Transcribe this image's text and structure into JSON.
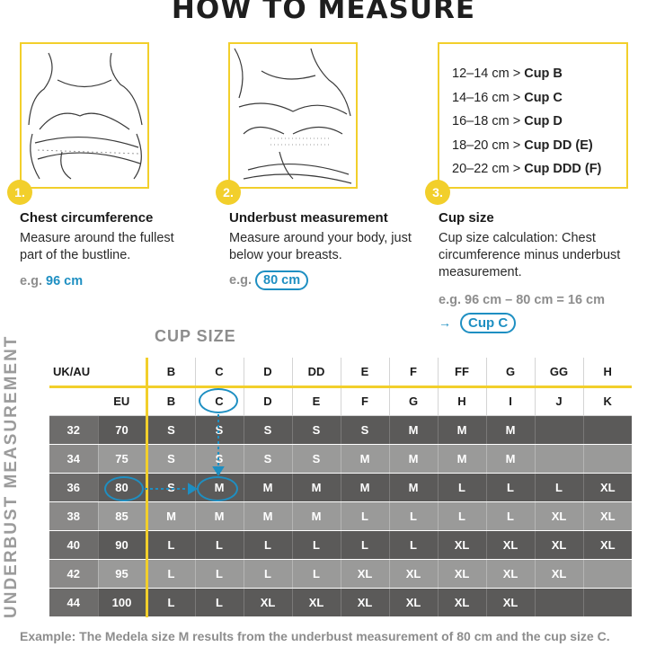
{
  "title": "HOW TO MEASURE",
  "steps": [
    {
      "num": "1.",
      "title": "Chest circumference",
      "desc": "Measure around the fullest part of the bustline.",
      "example_prefix": "e.g.",
      "example_value": "96 cm"
    },
    {
      "num": "2.",
      "title": "Underbust measurement",
      "desc": "Measure around your body, just below your breasts.",
      "example_prefix": "e.g.",
      "example_value": "80 cm"
    },
    {
      "num": "3.",
      "title": "Cup size",
      "desc": "Cup size calculation: Chest circumference minus underbust measurement.",
      "example_calc": "e.g. 96 cm – 80 cm = 16 cm",
      "example_result": "Cup C"
    }
  ],
  "cup_ranges": [
    {
      "range": "12–14 cm >",
      "cup": "Cup B"
    },
    {
      "range": "14–16 cm >",
      "cup": "Cup C"
    },
    {
      "range": "16–18 cm >",
      "cup": "Cup D"
    },
    {
      "range": "18–20 cm >",
      "cup": "Cup DD (E)"
    },
    {
      "range": "20–22 cm >",
      "cup": "Cup DDD (F)"
    }
  ],
  "table": {
    "cup_size_label": "CUP SIZE",
    "underbust_label": "UNDERBUST MEASUREMENT",
    "uk_header": "UK/AU",
    "eu_header": "EU",
    "uk_cups": [
      "B",
      "C",
      "D",
      "DD",
      "E",
      "F",
      "FF",
      "G",
      "GG",
      "H"
    ],
    "eu_cups": [
      "B",
      "C",
      "D",
      "E",
      "F",
      "G",
      "H",
      "I",
      "J",
      "K"
    ],
    "rows": [
      {
        "uk": "32",
        "eu": "70",
        "sizes": [
          "S",
          "S",
          "S",
          "S",
          "S",
          "M",
          "M",
          "M",
          "",
          ""
        ]
      },
      {
        "uk": "34",
        "eu": "75",
        "sizes": [
          "S",
          "S",
          "S",
          "S",
          "M",
          "M",
          "M",
          "M",
          "",
          ""
        ]
      },
      {
        "uk": "36",
        "eu": "80",
        "sizes": [
          "S",
          "M",
          "M",
          "M",
          "M",
          "M",
          "L",
          "L",
          "L",
          "XL"
        ]
      },
      {
        "uk": "38",
        "eu": "85",
        "sizes": [
          "M",
          "M",
          "M",
          "M",
          "L",
          "L",
          "L",
          "L",
          "XL",
          "XL"
        ]
      },
      {
        "uk": "40",
        "eu": "90",
        "sizes": [
          "L",
          "L",
          "L",
          "L",
          "L",
          "L",
          "XL",
          "XL",
          "XL",
          "XL"
        ]
      },
      {
        "uk": "42",
        "eu": "95",
        "sizes": [
          "L",
          "L",
          "L",
          "L",
          "XL",
          "XL",
          "XL",
          "XL",
          "XL",
          ""
        ]
      },
      {
        "uk": "44",
        "eu": "100",
        "sizes": [
          "L",
          "L",
          "XL",
          "XL",
          "XL",
          "XL",
          "XL",
          "XL",
          "",
          ""
        ]
      }
    ]
  },
  "footnote": "Example: The Medela size M results from the underbust measurement of 80 cm and the cup size C.",
  "colors": {
    "accent_yellow": "#f2cf2b",
    "accent_blue": "#1e8fc2",
    "dark_row": "#5b5a59",
    "light_row": "#9a9a99"
  }
}
